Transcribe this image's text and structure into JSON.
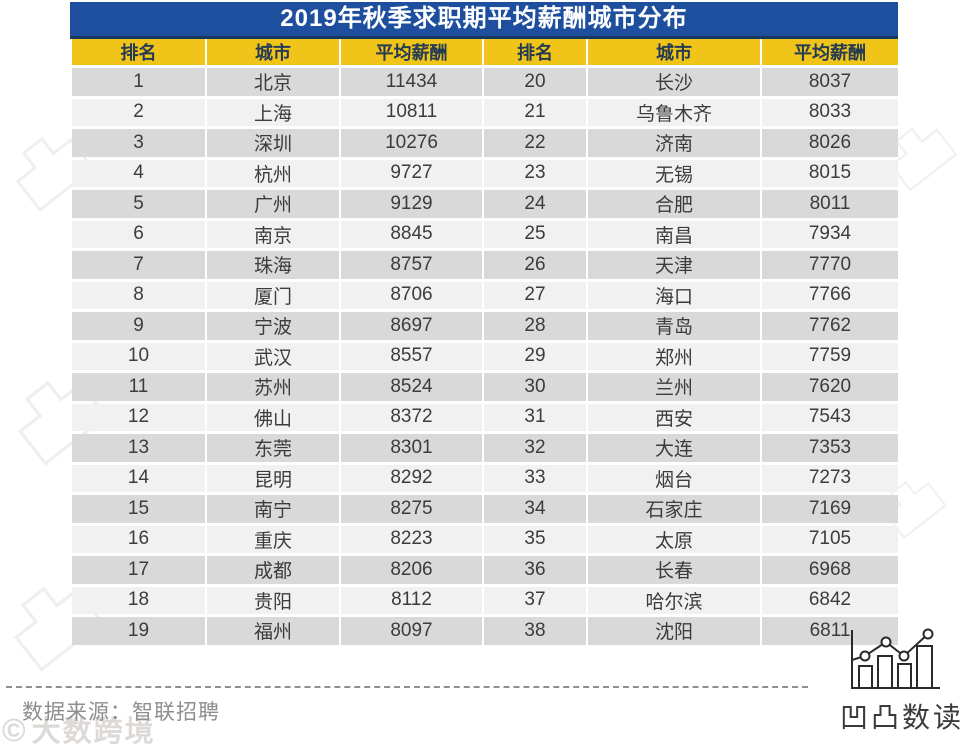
{
  "title": "2019年秋季求职期平均薪酬城市分布",
  "table": {
    "headers": [
      "排名",
      "城市",
      "平均薪酬",
      "排名",
      "城市",
      "平均薪酬"
    ]
  },
  "chart_data": {
    "type": "table",
    "title": "2019年秋季求职期平均薪酬城市分布",
    "columns": [
      "排名",
      "城市",
      "平均薪酬"
    ],
    "layout": "two-column-paired, ranks 1-19 left, 20-38 right",
    "records": [
      {
        "rank": "1",
        "city": "北京",
        "avg_salary": "11434"
      },
      {
        "rank": "2",
        "city": "上海",
        "avg_salary": "10811"
      },
      {
        "rank": "3",
        "city": "深圳",
        "avg_salary": "10276"
      },
      {
        "rank": "4",
        "city": "杭州",
        "avg_salary": "9727"
      },
      {
        "rank": "5",
        "city": "广州",
        "avg_salary": "9129"
      },
      {
        "rank": "6",
        "city": "南京",
        "avg_salary": "8845"
      },
      {
        "rank": "7",
        "city": "珠海",
        "avg_salary": "8757"
      },
      {
        "rank": "8",
        "city": "厦门",
        "avg_salary": "8706"
      },
      {
        "rank": "9",
        "city": "宁波",
        "avg_salary": "8697"
      },
      {
        "rank": "10",
        "city": "武汉",
        "avg_salary": "8557"
      },
      {
        "rank": "11",
        "city": "苏州",
        "avg_salary": "8524"
      },
      {
        "rank": "12",
        "city": "佛山",
        "avg_salary": "8372"
      },
      {
        "rank": "13",
        "city": "东莞",
        "avg_salary": "8301"
      },
      {
        "rank": "14",
        "city": "昆明",
        "avg_salary": "8292"
      },
      {
        "rank": "15",
        "city": "南宁",
        "avg_salary": "8275"
      },
      {
        "rank": "16",
        "city": "重庆",
        "avg_salary": "8223"
      },
      {
        "rank": "17",
        "city": "成都",
        "avg_salary": "8206"
      },
      {
        "rank": "18",
        "city": "贵阳",
        "avg_salary": "8112"
      },
      {
        "rank": "19",
        "city": "福州",
        "avg_salary": "8097"
      },
      {
        "rank": "20",
        "city": "长沙",
        "avg_salary": "8037"
      },
      {
        "rank": "21",
        "city": "乌鲁木齐",
        "avg_salary": "8033"
      },
      {
        "rank": "22",
        "city": "济南",
        "avg_salary": "8026"
      },
      {
        "rank": "23",
        "city": "无锡",
        "avg_salary": "8015"
      },
      {
        "rank": "24",
        "city": "合肥",
        "avg_salary": "8011"
      },
      {
        "rank": "25",
        "city": "南昌",
        "avg_salary": "7934"
      },
      {
        "rank": "26",
        "city": "天津",
        "avg_salary": "7770"
      },
      {
        "rank": "27",
        "city": "海口",
        "avg_salary": "7766"
      },
      {
        "rank": "28",
        "city": "青岛",
        "avg_salary": "7762"
      },
      {
        "rank": "29",
        "city": "郑州",
        "avg_salary": "7759"
      },
      {
        "rank": "30",
        "city": "兰州",
        "avg_salary": "7620"
      },
      {
        "rank": "31",
        "city": "西安",
        "avg_salary": "7543"
      },
      {
        "rank": "32",
        "city": "大连",
        "avg_salary": "7353"
      },
      {
        "rank": "33",
        "city": "烟台",
        "avg_salary": "7273"
      },
      {
        "rank": "34",
        "city": "石家庄",
        "avg_salary": "7169"
      },
      {
        "rank": "35",
        "city": "太原",
        "avg_salary": "7105"
      },
      {
        "rank": "36",
        "city": "长春",
        "avg_salary": "6968"
      },
      {
        "rank": "37",
        "city": "哈尔滨",
        "avg_salary": "6842"
      },
      {
        "rank": "38",
        "city": "沈阳",
        "avg_salary": "6811"
      }
    ]
  },
  "footer": {
    "source": "数据来源：智联招聘"
  },
  "branding": {
    "logo_text": "凹凸数读",
    "chart_icon": "bar-line-chart-icon"
  },
  "watermarks": {
    "bottom_left_text": "大数跨境"
  },
  "colors": {
    "title_bg": "#1E4F9E",
    "title_border": "#17375E",
    "header_bg": "#F0C419",
    "header_text": "#243B53",
    "row_odd": "#D9D9D9",
    "row_even": "#F1F1F1",
    "cell_text": "#3C3C3C",
    "footer_text": "#8E8E8E",
    "logo_stroke": "#2A2A2A"
  }
}
